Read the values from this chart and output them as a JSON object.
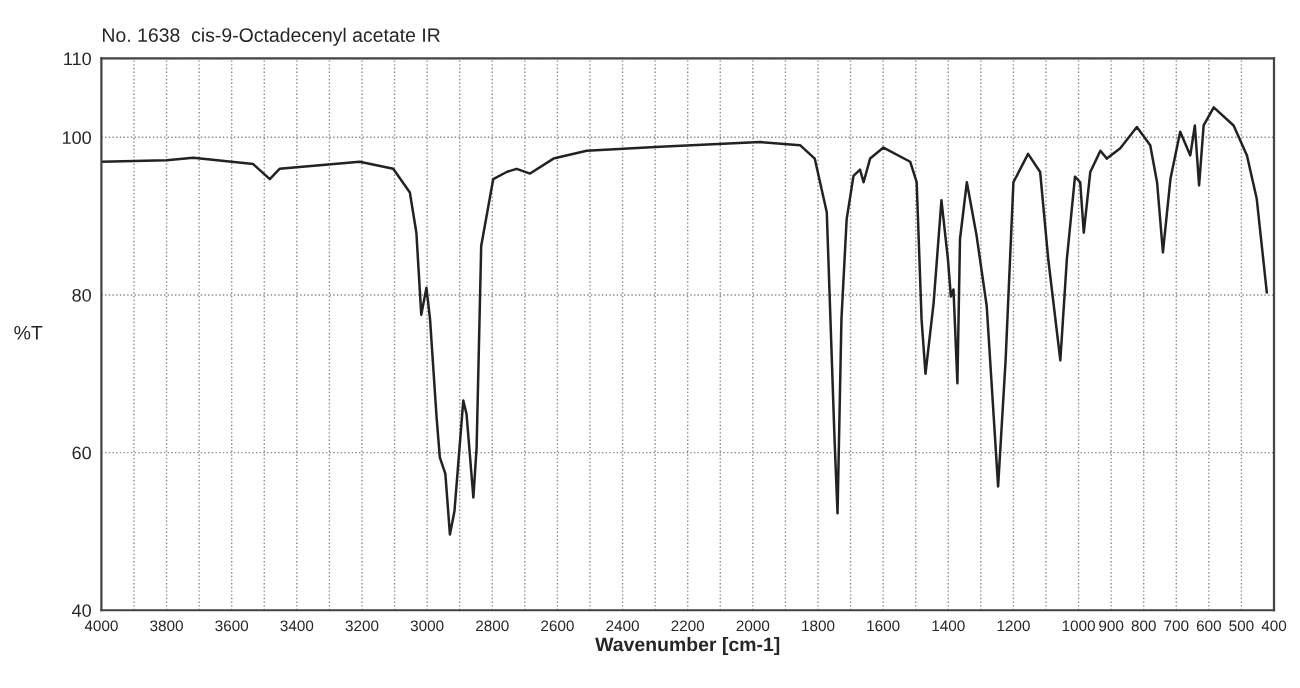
{
  "chart_data": {
    "type": "line",
    "title": "No. 1638  cis-9-Octadecenyl acetate IR",
    "xlabel": "Wavenumber [cm-1]",
    "ylabel": "%T",
    "x": [
      4000,
      3800,
      3718,
      3534,
      3483,
      3453,
      3207,
      3104,
      3053,
      3033,
      3018,
      3002,
      2991,
      2971,
      2961,
      2944,
      2930,
      2916,
      2889,
      2879,
      2858,
      2848,
      2834,
      2797,
      2756,
      2725,
      2684,
      2612,
      2510,
      2285,
      1978,
      1855,
      1810,
      1773,
      1749,
      1740,
      1728,
      1712,
      1691,
      1671,
      1660,
      1640,
      1599,
      1517,
      1497,
      1482,
      1470,
      1445,
      1421,
      1401,
      1392,
      1384,
      1372,
      1364,
      1343,
      1313,
      1282,
      1247,
      1224,
      1200,
      1155,
      1118,
      1093,
      1056,
      1036,
      1011,
      995,
      984,
      964,
      933,
      913,
      872,
      821,
      780,
      759,
      741,
      718,
      688,
      657,
      643,
      630,
      616,
      585,
      524,
      483,
      453,
      422
    ],
    "series": [
      {
        "color": "#222222",
        "values": [
          96.9,
          97.1,
          97.4,
          96.6,
          94.7,
          96.0,
          96.9,
          96.0,
          93.0,
          87.9,
          77.5,
          80.9,
          76.9,
          64.5,
          59.4,
          57.3,
          49.6,
          52.6,
          66.6,
          64.9,
          54.3,
          60.7,
          86.2,
          94.7,
          95.6,
          96.0,
          95.4,
          97.3,
          98.3,
          98.8,
          99.4,
          99.0,
          97.3,
          90.5,
          61.5,
          52.3,
          76.9,
          89.6,
          95.1,
          95.9,
          94.3,
          97.3,
          98.7,
          96.9,
          94.3,
          76.9,
          70.0,
          79.0,
          92.0,
          84.5,
          79.8,
          80.7,
          68.8,
          87.1,
          94.3,
          87.5,
          78.6,
          55.7,
          71.7,
          94.3,
          97.9,
          95.6,
          84.5,
          71.7,
          84.5,
          95.0,
          94.3,
          87.9,
          95.6,
          98.3,
          97.3,
          98.6,
          101.3,
          99.0,
          94.3,
          85.4,
          94.7,
          100.7,
          97.7,
          101.5,
          93.9,
          101.5,
          103.8,
          101.5,
          97.7,
          92.2,
          80.3
        ]
      }
    ],
    "xlim": [
      4000,
      400
    ],
    "xticks": [
      4000,
      {
        "value": 3900,
        "label": null
      },
      3800,
      {
        "value": 3700,
        "label": null
      },
      3600,
      {
        "value": 3500,
        "label": null
      },
      3400,
      {
        "value": 3300,
        "label": null
      },
      3200,
      {
        "value": 3100,
        "label": null
      },
      3000,
      {
        "value": 2900,
        "label": null
      },
      2800,
      {
        "value": 2700,
        "label": null
      },
      2600,
      {
        "value": 2500,
        "label": null
      },
      2400,
      {
        "value": 2300,
        "label": null
      },
      2200,
      {
        "value": 2100,
        "label": null
      },
      2000,
      {
        "value": 1900,
        "label": null
      },
      1800,
      {
        "value": 1700,
        "label": null
      },
      1600,
      {
        "value": 1500,
        "label": null
      },
      1400,
      {
        "value": 1300,
        "label": null
      },
      1200,
      {
        "value": 1100,
        "label": null
      },
      1000,
      900,
      800,
      700,
      600,
      500,
      400
    ],
    "ylim": [
      40,
      110
    ],
    "yticks": [
      40,
      60,
      80,
      100,
      110
    ],
    "grid": true,
    "marker": "none",
    "line_style": "solid"
  }
}
